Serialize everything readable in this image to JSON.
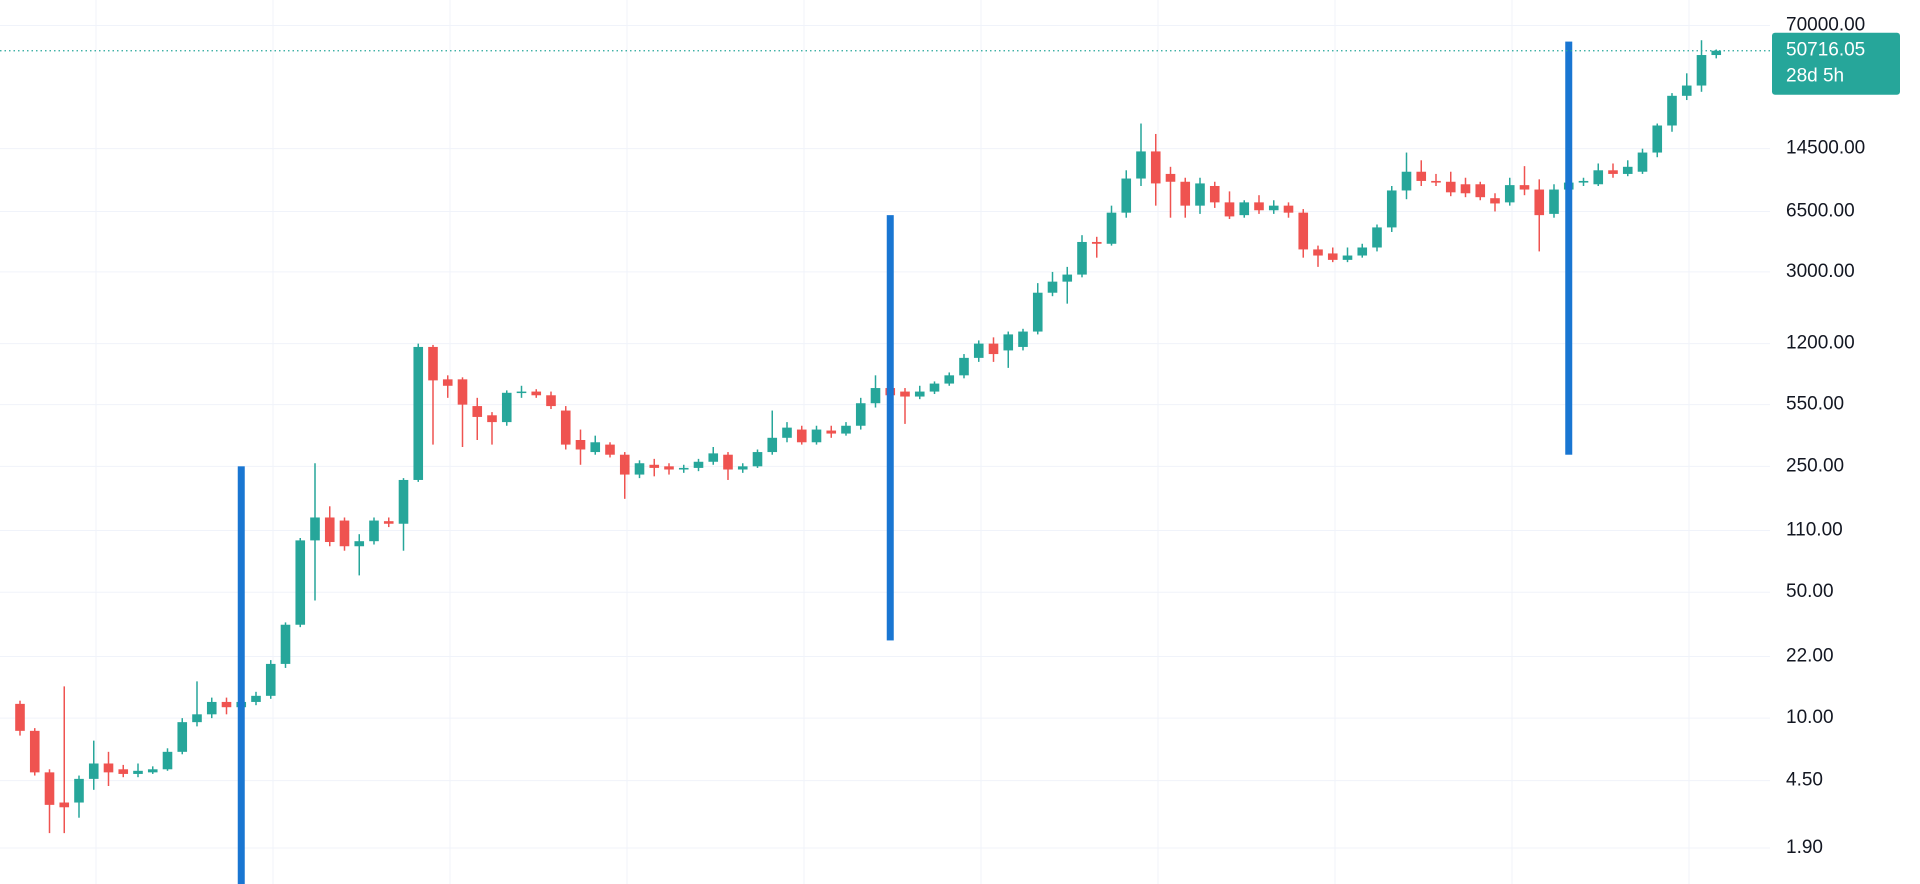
{
  "chart_data": {
    "type": "candlestick",
    "categories": [
      null,
      null,
      null,
      null,
      null,
      null,
      null,
      null,
      null,
      null,
      null,
      null,
      null,
      null,
      null,
      null,
      null,
      null,
      null,
      null,
      null,
      null,
      null,
      null,
      null,
      null,
      null,
      null,
      null,
      null,
      null,
      null,
      null,
      null,
      null,
      null,
      null,
      null,
      null,
      null,
      null,
      null,
      null,
      null,
      null,
      null,
      null,
      null,
      null,
      null,
      null,
      null,
      null,
      null,
      null,
      null,
      null,
      null,
      null,
      null,
      null,
      null,
      null,
      null,
      null,
      null,
      null,
      null,
      null,
      null,
      null,
      null,
      null,
      null,
      null,
      null,
      null,
      null,
      null,
      null,
      null,
      null,
      null,
      null,
      null,
      null,
      null,
      null,
      null,
      null,
      null,
      null,
      null,
      null,
      null,
      null,
      null,
      null,
      null,
      null,
      null,
      null,
      null,
      null,
      null,
      null,
      null,
      null,
      null,
      null,
      null,
      null,
      null,
      null,
      null,
      null
    ],
    "open": [
      12,
      8.5,
      5,
      3.4,
      3.4,
      4.6,
      5.6,
      5.2,
      4.9,
      5,
      5.2,
      6.5,
      9.5,
      10.5,
      12.3,
      11.5,
      12.3,
      13.3,
      20,
      33,
      97,
      130,
      125,
      90,
      96,
      124,
      120,
      210,
      1150,
      760,
      760,
      540,
      480,
      440,
      640,
      650,
      620,
      510,
      350,
      300,
      330,
      290,
      225,
      255,
      250,
      240,
      245,
      265,
      290,
      240,
      250,
      300,
      360,
      400,
      340,
      395,
      380,
      420,
      560,
      680,
      650,
      610,
      650,
      720,
      800,
      1000,
      1200,
      1100,
      1150,
      1400,
      2300,
      2650,
      2900,
      4400,
      4300,
      6400,
      9900,
      14000,
      10500,
      9500,
      7000,
      9000,
      7300,
      6200,
      7300,
      6600,
      7000,
      6400,
      4000,
      3800,
      3500,
      3700,
      4100,
      5300,
      8500,
      10800,
      9600,
      9500,
      9200,
      9200,
      7700,
      7300,
      9100,
      8600,
      6300,
      8600,
      9400,
      9200,
      11000,
      10500,
      10800,
      13800,
      19500,
      28500,
      32500,
      48000
    ],
    "high": [
      12.5,
      8.8,
      5.2,
      15,
      4.8,
      7.5,
      6.5,
      5.5,
      5.6,
      5.4,
      6.8,
      10,
      16,
      13,
      13,
      13,
      14,
      21,
      34,
      100,
      260,
      150,
      130,
      105,
      130,
      130,
      215,
      1200,
      1180,
      800,
      780,
      600,
      500,
      660,
      700,
      670,
      650,
      540,
      400,
      370,
      340,
      300,
      270,
      275,
      260,
      255,
      275,
      320,
      300,
      260,
      310,
      510,
      440,
      420,
      420,
      420,
      440,
      600,
      800,
      700,
      680,
      700,
      740,
      830,
      1050,
      1250,
      1300,
      1400,
      1450,
      2600,
      3000,
      3200,
      4800,
      4700,
      7000,
      11000,
      20000,
      17500,
      11500,
      10000,
      10000,
      9500,
      8400,
      7500,
      8000,
      7500,
      7300,
      6700,
      4200,
      4100,
      4100,
      4300,
      5500,
      9000,
      13800,
      12500,
      10500,
      10800,
      10000,
      9500,
      8200,
      10000,
      11600,
      9800,
      9200,
      10000,
      10000,
      12000,
      12000,
      12500,
      14500,
      20000,
      29500,
      38000,
      58000,
      51500
    ],
    "low": [
      8,
      4.8,
      2.3,
      2.3,
      2.8,
      4,
      4.2,
      4.7,
      4.7,
      4.9,
      5.1,
      6.3,
      9,
      10,
      10.5,
      10.8,
      11.8,
      12.8,
      19,
      32,
      45,
      90,
      85,
      62,
      92,
      115,
      85,
      205,
      330,
      600,
      320,
      350,
      330,
      420,
      600,
      600,
      520,
      310,
      255,
      290,
      280,
      165,
      215,
      220,
      225,
      230,
      235,
      255,
      210,
      230,
      245,
      290,
      340,
      330,
      330,
      360,
      370,
      400,
      530,
      520,
      430,
      590,
      630,
      700,
      770,
      950,
      950,
      880,
      1100,
      1350,
      2200,
      2000,
      2800,
      3600,
      4200,
      6000,
      9000,
      7000,
      6000,
      6000,
      6300,
      6800,
      5900,
      6000,
      6300,
      6300,
      6000,
      3600,
      3200,
      3400,
      3400,
      3600,
      3900,
      5000,
      7600,
      9000,
      9000,
      7900,
      7800,
      7500,
      6500,
      7000,
      8000,
      3900,
      6000,
      8000,
      9000,
      9000,
      10000,
      10200,
      10500,
      13000,
      18000,
      27000,
      30000,
      46000
    ],
    "close": [
      8.5,
      5,
      3.3,
      3.2,
      4.6,
      5.6,
      5,
      4.9,
      5.1,
      5.2,
      6.5,
      9.5,
      10.5,
      12.3,
      11.5,
      12.3,
      13.3,
      20,
      33,
      97,
      130,
      95,
      90,
      96,
      125,
      120,
      210,
      1150,
      750,
      700,
      550,
      470,
      440,
      640,
      650,
      620,
      540,
      330,
      310,
      340,
      290,
      225,
      260,
      245,
      240,
      245,
      265,
      295,
      240,
      250,
      300,
      360,
      410,
      340,
      400,
      380,
      420,
      560,
      680,
      620,
      610,
      650,
      720,
      800,
      1000,
      1200,
      1050,
      1350,
      1400,
      2300,
      2650,
      2900,
      4400,
      4300,
      6400,
      9900,
      14000,
      9300,
      9500,
      7000,
      9300,
      7300,
      6100,
      7300,
      6600,
      7000,
      6400,
      4000,
      3700,
      3500,
      3700,
      4100,
      5300,
      8500,
      10800,
      9600,
      9400,
      8300,
      8200,
      7800,
      7200,
      9100,
      8600,
      6200,
      8600,
      9400,
      9600,
      11000,
      10500,
      11500,
      13800,
      19500,
      28500,
      32500,
      48000,
      50716.05
    ],
    "up_color": "#26a69a",
    "down_color": "#ef5350",
    "log_scale": true,
    "grid": true,
    "ylim": [
      1.2,
      97000
    ],
    "yticks": [
      {
        "value": 70000,
        "label": "70000.00"
      },
      {
        "value": 14500,
        "label": "14500.00"
      },
      {
        "value": 6500,
        "label": "6500.00"
      },
      {
        "value": 3000,
        "label": "3000.00"
      },
      {
        "value": 1200,
        "label": "1200.00"
      },
      {
        "value": 550,
        "label": "550.00"
      },
      {
        "value": 250,
        "label": "250.00"
      },
      {
        "value": 110,
        "label": "110.00"
      },
      {
        "value": 50,
        "label": "50.00"
      },
      {
        "value": 22,
        "label": "22.00"
      },
      {
        "value": 10,
        "label": "10.00"
      },
      {
        "value": 4.5,
        "label": "4.50"
      },
      {
        "value": 1.9,
        "label": "1.90"
      }
    ],
    "last_price": 50716.05,
    "last_price_countdown": "28d 5h",
    "vertical_lines": [
      {
        "index": 15,
        "top": 250,
        "bottom": 1.2
      },
      {
        "index": 59,
        "top": 6200,
        "bottom": 27
      },
      {
        "index": 105,
        "top": 57000,
        "bottom": 290
      }
    ],
    "vertical_line_color": "#1976d2"
  }
}
